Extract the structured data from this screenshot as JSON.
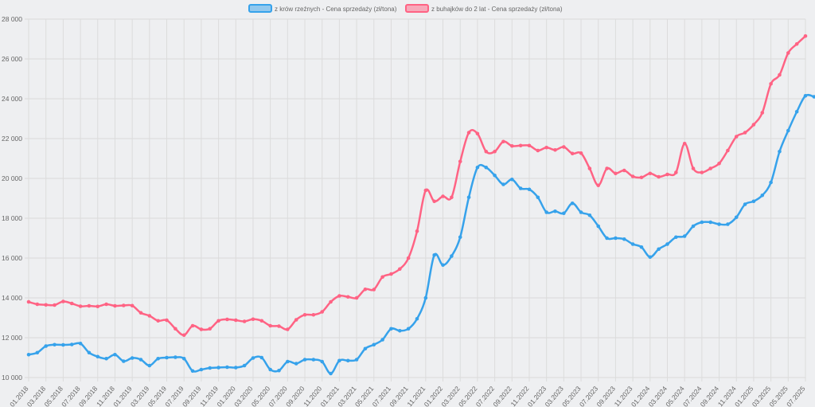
{
  "chart_data": {
    "type": "line",
    "title": "",
    "xlabel": "",
    "ylabel": "",
    "ylim": [
      10000,
      28000
    ],
    "y_ticks": [
      "10 000",
      "12 000",
      "14 000",
      "16 000",
      "18 000",
      "20 000",
      "22 000",
      "24 000",
      "26 000",
      "28 000"
    ],
    "x_ticks": [
      "01.2018",
      "03.2018",
      "05.2018",
      "07.2018",
      "09.2018",
      "11.2018",
      "01.2019",
      "03.2019",
      "05.2019",
      "07.2019",
      "09.2019",
      "11.2019",
      "01.2020",
      "03.2020",
      "05.2020",
      "07.2020",
      "09.2020",
      "11.2020",
      "01.2021",
      "03.2021",
      "05.2021",
      "07.2021",
      "09.2021",
      "11.2021",
      "01.2022",
      "03.2022",
      "05.2022",
      "07.2022",
      "09.2022",
      "11.2022",
      "01.2023",
      "03.2023",
      "05.2023",
      "07.2023",
      "09.2023",
      "11.2023",
      "01.2024",
      "03.2024",
      "05.2024",
      "07.2024",
      "09.2024",
      "11.2024",
      "01.2025",
      "03.2025",
      "05.2025",
      "07.2025"
    ],
    "grid": true,
    "legend_position": "top",
    "series": [
      {
        "name": "z krów rzeźnych - Cena sprzedaży (zł/tona)",
        "color": "#36a2eb",
        "values": [
          11150,
          11250,
          11580,
          11650,
          11640,
          11660,
          11710,
          11250,
          11050,
          10950,
          11150,
          10820,
          10980,
          10900,
          10600,
          10950,
          11000,
          11020,
          10950,
          10330,
          10400,
          10480,
          10500,
          10520,
          10500,
          10600,
          10980,
          11000,
          10400,
          10350,
          10800,
          10700,
          10900,
          10900,
          10800,
          10200,
          10850,
          10850,
          10900,
          11450,
          11650,
          11900,
          12450,
          12350,
          12450,
          12950,
          14000,
          16150,
          15650,
          16100,
          17050,
          19050,
          20550,
          20550,
          20150,
          19700,
          19950,
          19500,
          19450,
          19050,
          18300,
          18350,
          18250,
          18750,
          18300,
          18150,
          17600,
          17000,
          17000,
          16950,
          16700,
          16550,
          16050,
          16450,
          16700,
          17050,
          17100,
          17600,
          17800,
          17800,
          17700,
          17700,
          18050,
          18700,
          18850,
          19150,
          19800,
          21350,
          22400,
          23350,
          24150,
          24100
        ]
      },
      {
        "name": "z buhajków do 2 lat - Cena sprzedaży (zł/tona)",
        "color": "#ff6384",
        "values": [
          13800,
          13680,
          13650,
          13640,
          13820,
          13720,
          13580,
          13600,
          13570,
          13680,
          13600,
          13620,
          13610,
          13250,
          13100,
          12850,
          12880,
          12450,
          12130,
          12600,
          12420,
          12450,
          12850,
          12920,
          12880,
          12820,
          12930,
          12850,
          12600,
          12580,
          12420,
          12900,
          13150,
          13150,
          13300,
          13800,
          14100,
          14050,
          14000,
          14430,
          14420,
          15050,
          15200,
          15450,
          16000,
          17350,
          19400,
          18850,
          19100,
          19050,
          20850,
          22300,
          22250,
          21350,
          21350,
          21850,
          21630,
          21650,
          21650,
          21400,
          21550,
          21430,
          21580,
          21250,
          21270,
          20500,
          19650,
          20500,
          20250,
          20400,
          20100,
          20050,
          20250,
          20080,
          20200,
          20300,
          21750,
          20500,
          20300,
          20500,
          20750,
          21400,
          22100,
          22300,
          22700,
          23300,
          24750,
          25200,
          26300,
          26750,
          27150
        ]
      }
    ]
  }
}
